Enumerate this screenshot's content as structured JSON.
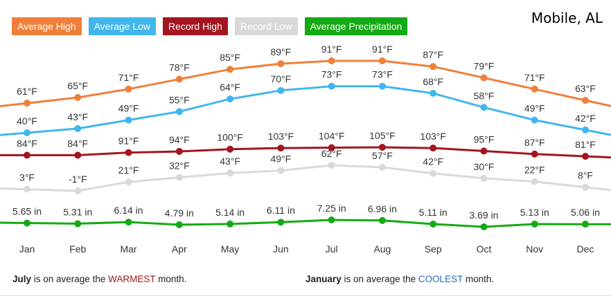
{
  "location": "Mobile, AL",
  "chart_data": {
    "type": "line",
    "categories": [
      "Jan",
      "Feb",
      "Mar",
      "Apr",
      "May",
      "Jun",
      "Jul",
      "Aug",
      "Sep",
      "Oct",
      "Nov",
      "Dec"
    ],
    "series": [
      {
        "name": "Average High",
        "color": "#f07f3a",
        "unit": "°F",
        "values": [
          61,
          65,
          71,
          78,
          85,
          89,
          91,
          91,
          87,
          79,
          71,
          63
        ],
        "labels": [
          "61°F",
          "65°F",
          "71°F",
          "78°F",
          "85°F",
          "89°F",
          "91°F",
          "91°F",
          "87°F",
          "79°F",
          "71°F",
          "63°F"
        ]
      },
      {
        "name": "Average Low",
        "color": "#41b6ed",
        "unit": "°F",
        "values": [
          40,
          43,
          49,
          55,
          64,
          70,
          73,
          73,
          68,
          58,
          49,
          42
        ],
        "labels": [
          "40°F",
          "43°F",
          "49°F",
          "55°F",
          "64°F",
          "70°F",
          "73°F",
          "73°F",
          "68°F",
          "58°F",
          "49°F",
          "42°F"
        ]
      },
      {
        "name": "Record High",
        "color": "#a31521",
        "unit": "°F",
        "values": [
          84,
          84,
          91,
          94,
          100,
          103,
          104,
          105,
          103,
          95,
          87,
          81
        ],
        "labels": [
          "84°F",
          "84°F",
          "91°F",
          "94°F",
          "100°F",
          "103°F",
          "104°F",
          "105°F",
          "103°F",
          "95°F",
          "87°F",
          "81°F"
        ]
      },
      {
        "name": "Record Low",
        "color": "#d9d9d9",
        "unit": "°F",
        "values": [
          3,
          -1,
          21,
          32,
          43,
          49,
          62,
          57,
          42,
          30,
          22,
          8
        ],
        "labels": [
          "3°F",
          "-1°F",
          "21°F",
          "32°F",
          "43°F",
          "49°F",
          "62°F",
          "57°F",
          "42°F",
          "30°F",
          "22°F",
          "8°F"
        ]
      },
      {
        "name": "Average Precipitation",
        "color": "#13aa13",
        "unit": "in",
        "values": [
          5.65,
          5.31,
          6.14,
          4.79,
          5.14,
          6.11,
          7.25,
          6.96,
          5.11,
          3.69,
          5.13,
          5.06
        ],
        "labels": [
          "5.65 in",
          "5.31 in",
          "6.14 in",
          "4.79 in",
          "5.14 in",
          "6.11 in",
          "7.25 in",
          "6.96 in",
          "5.11 in",
          "3.69 in",
          "5.13 in",
          "5.06 in"
        ]
      }
    ],
    "grid": false,
    "legend": "top-left"
  },
  "footer": {
    "warm_month": "July",
    "warm_text_a": " is on average the ",
    "warm_word": "WARMEST",
    "warm_text_b": " month.",
    "cool_month": "January",
    "cool_text_a": " is on average the ",
    "cool_word": "COOLEST",
    "cool_text_b": " month."
  }
}
